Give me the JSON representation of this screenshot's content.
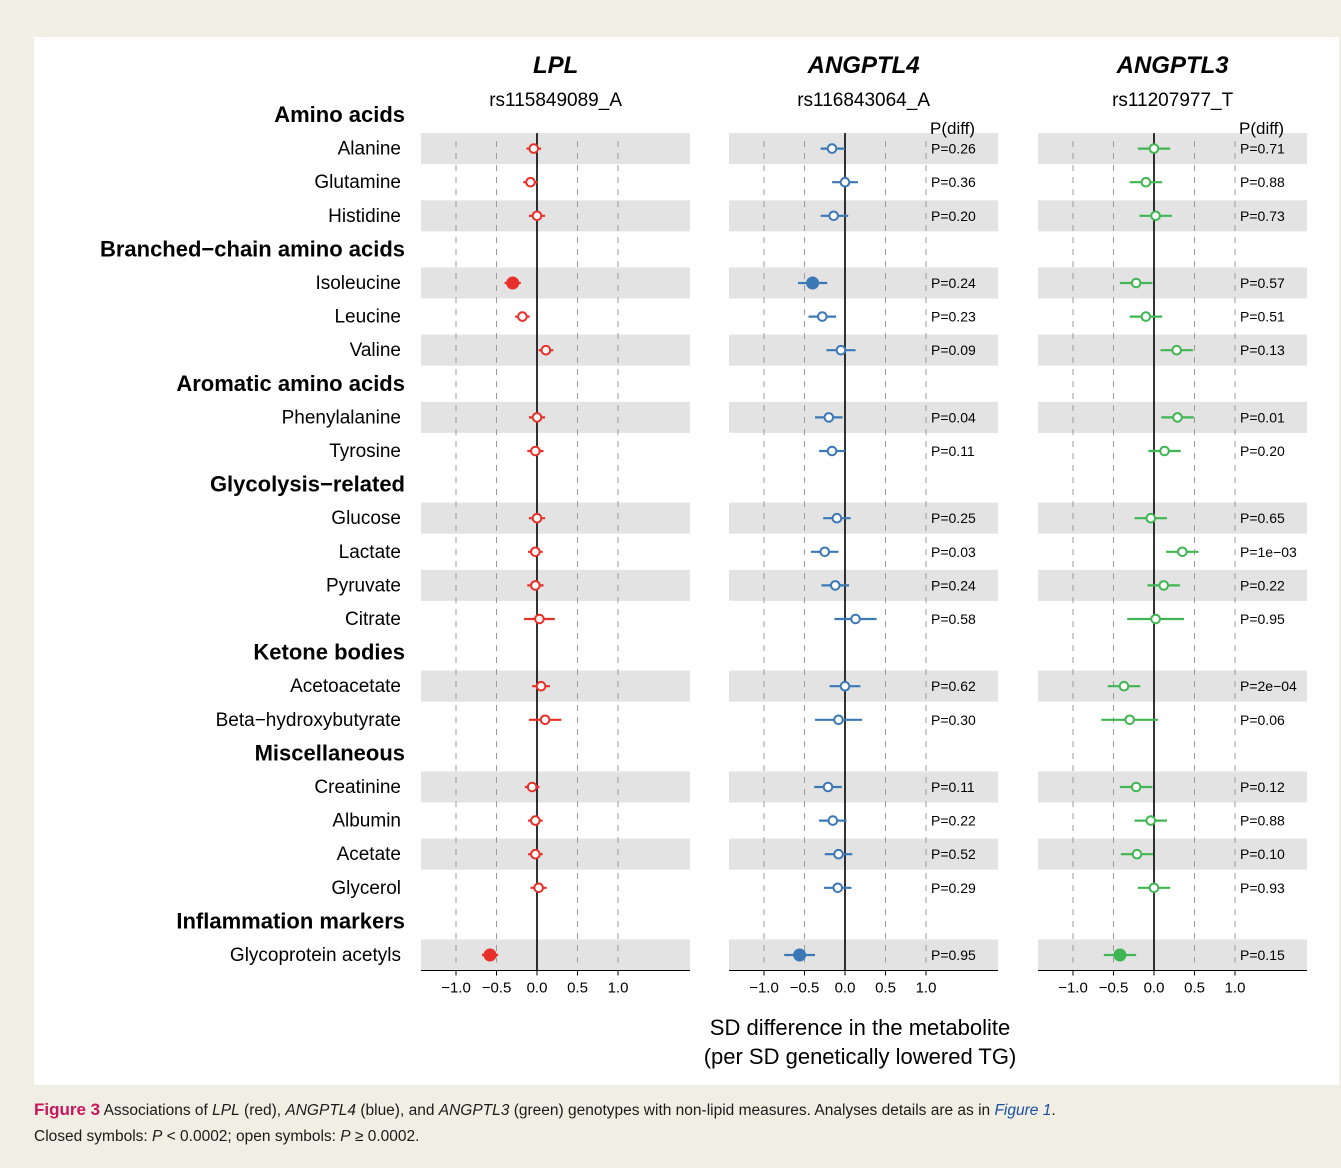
{
  "chart_data": {
    "type": "forest",
    "xticks": [
      -1.0,
      -0.5,
      0.0,
      0.5,
      1.0
    ],
    "xtick_labels": [
      "−1.0",
      "−0.5",
      "0.0",
      "0.5",
      "1.0"
    ],
    "xlim": [
      -1.45,
      1.9
    ],
    "dashed_gridlines": [
      -1.0,
      -0.5,
      0.5,
      1.0
    ],
    "xlabel_line1": "SD difference in the metabolite",
    "xlabel_line2": "(per SD genetically lowered TG)",
    "pdiff_header": "P(diff)",
    "groups": [
      {
        "name": "Amino acids",
        "metabolites": [
          "Alanine",
          "Glutamine",
          "Histidine"
        ]
      },
      {
        "name": "Branched−chain amino acids",
        "metabolites": [
          "Isoleucine",
          "Leucine",
          "Valine"
        ]
      },
      {
        "name": "Aromatic amino acids",
        "metabolites": [
          "Phenylalanine",
          "Tyrosine"
        ]
      },
      {
        "name": "Glycolysis−related",
        "metabolites": [
          "Glucose",
          "Lactate",
          "Pyruvate",
          "Citrate"
        ]
      },
      {
        "name": "Ketone bodies",
        "metabolites": [
          "Acetoacetate",
          "Beta−hydroxybutyrate"
        ]
      },
      {
        "name": "Miscellaneous",
        "metabolites": [
          "Creatinine",
          "Albumin",
          "Acetate",
          "Glycerol"
        ]
      },
      {
        "name": "Inflammation markers",
        "metabolites": [
          "Glycoprotein acetyls"
        ]
      }
    ],
    "panels": [
      {
        "gene": "LPL",
        "variant": "rs115849089_A",
        "color": "#e8302a",
        "show_p": false,
        "points": [
          {
            "est": -0.04,
            "lo": -0.13,
            "hi": 0.05,
            "closed": false
          },
          {
            "est": -0.08,
            "lo": -0.17,
            "hi": 0.01,
            "closed": false
          },
          {
            "est": 0.0,
            "lo": -0.1,
            "hi": 0.1,
            "closed": false
          },
          {
            "est": -0.3,
            "lo": -0.4,
            "hi": -0.2,
            "closed": true
          },
          {
            "est": -0.18,
            "lo": -0.27,
            "hi": -0.09,
            "closed": false
          },
          {
            "est": 0.11,
            "lo": 0.02,
            "hi": 0.2,
            "closed": false
          },
          {
            "est": 0.0,
            "lo": -0.1,
            "hi": 0.1,
            "closed": false
          },
          {
            "est": -0.02,
            "lo": -0.12,
            "hi": 0.08,
            "closed": false
          },
          {
            "est": 0.0,
            "lo": -0.1,
            "hi": 0.1,
            "closed": false
          },
          {
            "est": -0.02,
            "lo": -0.11,
            "hi": 0.07,
            "closed": false
          },
          {
            "est": -0.02,
            "lo": -0.12,
            "hi": 0.08,
            "closed": false
          },
          {
            "est": 0.03,
            "lo": -0.16,
            "hi": 0.22,
            "closed": false
          },
          {
            "est": 0.05,
            "lo": -0.06,
            "hi": 0.16,
            "closed": false
          },
          {
            "est": 0.1,
            "lo": -0.1,
            "hi": 0.3,
            "closed": false
          },
          {
            "est": -0.06,
            "lo": -0.15,
            "hi": 0.03,
            "closed": false
          },
          {
            "est": -0.02,
            "lo": -0.11,
            "hi": 0.07,
            "closed": false
          },
          {
            "est": -0.02,
            "lo": -0.11,
            "hi": 0.07,
            "closed": false
          },
          {
            "est": 0.02,
            "lo": -0.08,
            "hi": 0.12,
            "closed": false
          },
          {
            "est": -0.58,
            "lo": -0.68,
            "hi": -0.48,
            "closed": true
          }
        ]
      },
      {
        "gene": "ANGPTL4",
        "variant": "rs116843064_A",
        "color": "#3b78b5",
        "show_p": true,
        "points": [
          {
            "est": -0.16,
            "lo": -0.3,
            "hi": 0.0,
            "closed": false,
            "p": "P=0.26"
          },
          {
            "est": 0.0,
            "lo": -0.16,
            "hi": 0.16,
            "closed": false,
            "p": "P=0.36"
          },
          {
            "est": -0.14,
            "lo": -0.3,
            "hi": 0.04,
            "closed": false,
            "p": "P=0.20"
          },
          {
            "est": -0.4,
            "lo": -0.58,
            "hi": -0.22,
            "closed": true,
            "p": "P=0.24"
          },
          {
            "est": -0.28,
            "lo": -0.45,
            "hi": -0.11,
            "closed": false,
            "p": "P=0.23"
          },
          {
            "est": -0.05,
            "lo": -0.23,
            "hi": 0.13,
            "closed": false,
            "p": "P=0.09"
          },
          {
            "est": -0.2,
            "lo": -0.37,
            "hi": -0.03,
            "closed": false,
            "p": "P=0.04"
          },
          {
            "est": -0.16,
            "lo": -0.32,
            "hi": 0.0,
            "closed": false,
            "p": "P=0.11"
          },
          {
            "est": -0.1,
            "lo": -0.27,
            "hi": 0.07,
            "closed": false,
            "p": "P=0.25"
          },
          {
            "est": -0.25,
            "lo": -0.42,
            "hi": -0.08,
            "closed": false,
            "p": "P=0.03"
          },
          {
            "est": -0.12,
            "lo": -0.29,
            "hi": 0.05,
            "closed": false,
            "p": "P=0.24"
          },
          {
            "est": 0.13,
            "lo": -0.13,
            "hi": 0.39,
            "closed": false,
            "p": "P=0.58"
          },
          {
            "est": 0.0,
            "lo": -0.19,
            "hi": 0.19,
            "closed": false,
            "p": "P=0.62"
          },
          {
            "est": -0.08,
            "lo": -0.37,
            "hi": 0.21,
            "closed": false,
            "p": "P=0.30"
          },
          {
            "est": -0.21,
            "lo": -0.38,
            "hi": -0.04,
            "closed": false,
            "p": "P=0.11"
          },
          {
            "est": -0.15,
            "lo": -0.32,
            "hi": 0.02,
            "closed": false,
            "p": "P=0.22"
          },
          {
            "est": -0.08,
            "lo": -0.25,
            "hi": 0.09,
            "closed": false,
            "p": "P=0.52"
          },
          {
            "est": -0.09,
            "lo": -0.26,
            "hi": 0.08,
            "closed": false,
            "p": "P=0.29"
          },
          {
            "est": -0.56,
            "lo": -0.75,
            "hi": -0.37,
            "closed": true,
            "p": "P=0.95"
          }
        ]
      },
      {
        "gene": "ANGPTL3",
        "variant": "rs11207977_T",
        "color": "#3fb553",
        "show_p": true,
        "points": [
          {
            "est": 0.0,
            "lo": -0.2,
            "hi": 0.2,
            "closed": false,
            "p": "P=0.71"
          },
          {
            "est": -0.1,
            "lo": -0.3,
            "hi": 0.1,
            "closed": false,
            "p": "P=0.88"
          },
          {
            "est": 0.02,
            "lo": -0.18,
            "hi": 0.22,
            "closed": false,
            "p": "P=0.73"
          },
          {
            "est": -0.22,
            "lo": -0.42,
            "hi": -0.02,
            "closed": false,
            "p": "P=0.57"
          },
          {
            "est": -0.1,
            "lo": -0.3,
            "hi": 0.1,
            "closed": false,
            "p": "P=0.51"
          },
          {
            "est": 0.28,
            "lo": 0.08,
            "hi": 0.48,
            "closed": false,
            "p": "P=0.13"
          },
          {
            "est": 0.29,
            "lo": 0.09,
            "hi": 0.49,
            "closed": false,
            "p": "P=0.01"
          },
          {
            "est": 0.13,
            "lo": -0.07,
            "hi": 0.33,
            "closed": false,
            "p": "P=0.20"
          },
          {
            "est": -0.04,
            "lo": -0.24,
            "hi": 0.16,
            "closed": false,
            "p": "P=0.65"
          },
          {
            "est": 0.35,
            "lo": 0.15,
            "hi": 0.55,
            "closed": false,
            "p": "P=1e−03"
          },
          {
            "est": 0.12,
            "lo": -0.08,
            "hi": 0.32,
            "closed": false,
            "p": "P=0.22"
          },
          {
            "est": 0.02,
            "lo": -0.33,
            "hi": 0.37,
            "closed": false,
            "p": "P=0.95"
          },
          {
            "est": -0.37,
            "lo": -0.57,
            "hi": -0.17,
            "closed": false,
            "p": "P=2e−04"
          },
          {
            "est": -0.3,
            "lo": -0.65,
            "hi": 0.05,
            "closed": false,
            "p": "P=0.06"
          },
          {
            "est": -0.22,
            "lo": -0.42,
            "hi": -0.02,
            "closed": false,
            "p": "P=0.12"
          },
          {
            "est": -0.04,
            "lo": -0.24,
            "hi": 0.16,
            "closed": false,
            "p": "P=0.88"
          },
          {
            "est": -0.21,
            "lo": -0.41,
            "hi": -0.01,
            "closed": false,
            "p": "P=0.10"
          },
          {
            "est": 0.0,
            "lo": -0.2,
            "hi": 0.2,
            "closed": false,
            "p": "P=0.93"
          },
          {
            "est": -0.42,
            "lo": -0.62,
            "hi": -0.22,
            "closed": true,
            "p": "P=0.15"
          }
        ]
      }
    ]
  },
  "caption": {
    "label": "Figure 3",
    "t1": "Associations of ",
    "g1": "LPL",
    "t2": " (red), ",
    "g2": "ANGPTL4",
    "t3": " (blue), and ",
    "g3": "ANGPTL3",
    "t4": " (green) genotypes with non-lipid measures. Analyses details are as in ",
    "link": "Figure 1",
    "t5": ".",
    "t6": "Closed symbols: ",
    "p1": "P",
    "t7": " < 0.0002; open symbols: ",
    "p2": "P",
    "t8": " ≥ 0.0002."
  }
}
